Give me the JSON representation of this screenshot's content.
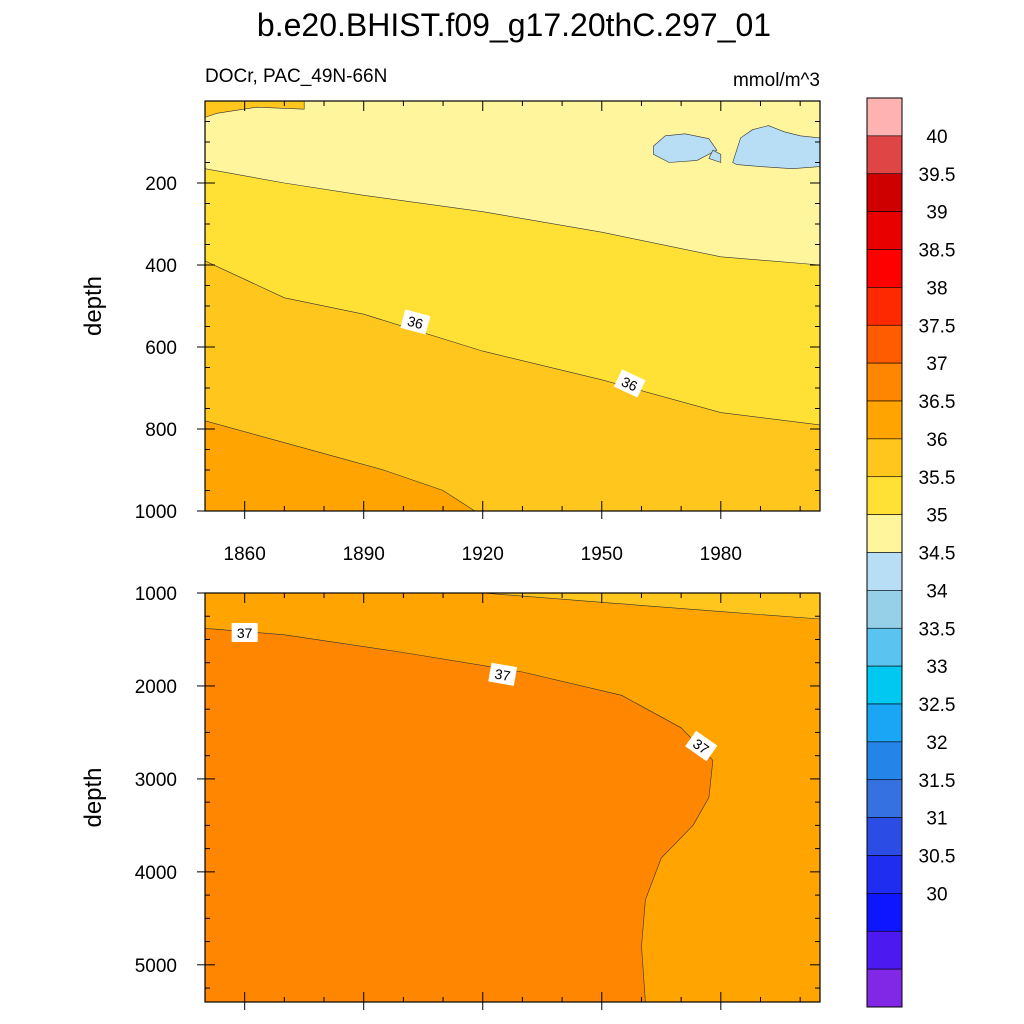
{
  "figure": {
    "title": "b.e20.BHIST.f09_g17.20thC.297_01",
    "variable_label": "DOCr, PAC_49N-66N",
    "units_label": "mmol/m^3"
  },
  "chart_data": [
    {
      "type": "heatmap",
      "panel": "upper",
      "ylabel": "depth",
      "y_reversed": true,
      "x_ticks": [
        "1860",
        "1890",
        "1920",
        "1950",
        "1980"
      ],
      "x_tick_values": [
        1860,
        1890,
        1920,
        1950,
        1980
      ],
      "xlim": [
        1850,
        2005
      ],
      "y_ticks": [
        "200",
        "400",
        "600",
        "800",
        "1000"
      ],
      "y_tick_values": [
        200,
        400,
        600,
        800,
        1000
      ],
      "ylim": [
        0,
        1000
      ],
      "contour_labels": [
        {
          "text": "36",
          "x": 1903,
          "y": 540,
          "angle": 15
        },
        {
          "text": "36",
          "x": 1957,
          "y": 690,
          "angle": 25
        }
      ],
      "regions": [
        {
          "fill": "#ffc61e",
          "points": [
            [
              1850,
              0
            ],
            [
              2005,
              0
            ],
            [
              2005,
              1000
            ],
            [
              1850,
              1000
            ]
          ]
        },
        {
          "fill": "#ffe135",
          "points": [
            [
              1850,
              0
            ],
            [
              2005,
              0
            ],
            [
              2005,
              790
            ],
            [
              1980,
              760
            ],
            [
              1950,
              680
            ],
            [
              1920,
              610
            ],
            [
              1890,
              520
            ],
            [
              1870,
              480
            ],
            [
              1850,
              390
            ]
          ]
        },
        {
          "fill": "#fff59d",
          "points": [
            [
              1850,
              0
            ],
            [
              2005,
              0
            ],
            [
              2005,
              400
            ],
            [
              1980,
              380
            ],
            [
              1950,
              320
            ],
            [
              1920,
              270
            ],
            [
              1890,
              230
            ],
            [
              1870,
              200
            ],
            [
              1850,
              165
            ]
          ]
        },
        {
          "fill": "#ffc61e",
          "points": [
            [
              1850,
              40
            ],
            [
              1853,
              30
            ],
            [
              1863,
              15
            ],
            [
              1875,
              20
            ],
            [
              1875,
              0
            ],
            [
              1850,
              0
            ]
          ]
        },
        {
          "fill": "#ffa400",
          "points": [
            [
              1850,
              780
            ],
            [
              1865,
              820
            ],
            [
              1880,
              860
            ],
            [
              1895,
              900
            ],
            [
              1910,
              950
            ],
            [
              1918,
              1000
            ],
            [
              1850,
              1000
            ]
          ]
        },
        {
          "fill": "#b7def5",
          "points": [
            [
              1963,
              110
            ],
            [
              1966,
              85
            ],
            [
              1971,
              80
            ],
            [
              1977,
              92
            ],
            [
              1979,
              120
            ],
            [
              1974,
              145
            ],
            [
              1967,
              150
            ],
            [
              1963,
              130
            ]
          ]
        },
        {
          "fill": "#b7def5",
          "points": [
            [
              1977,
              140
            ],
            [
              1978,
              120
            ],
            [
              1980,
              130
            ],
            [
              1980,
              150
            ]
          ]
        },
        {
          "fill": "#b7def5",
          "points": [
            [
              1983,
              150
            ],
            [
              1985,
              90
            ],
            [
              1988,
              70
            ],
            [
              1992,
              60
            ],
            [
              1996,
              75
            ],
            [
              2000,
              85
            ],
            [
              2005,
              90
            ],
            [
              2005,
              160
            ],
            [
              1998,
              165
            ],
            [
              1990,
              160
            ],
            [
              1984,
              155
            ]
          ]
        }
      ],
      "levels": [
        35,
        35.5,
        36,
        36.5
      ]
    },
    {
      "type": "heatmap",
      "panel": "lower",
      "ylabel": "depth",
      "y_reversed": true,
      "xlim": [
        1850,
        2005
      ],
      "y_ticks": [
        "1000",
        "2000",
        "3000",
        "4000",
        "5000"
      ],
      "y_tick_values": [
        1000,
        2000,
        3000,
        4000,
        5000
      ],
      "ylim": [
        1000,
        5400
      ],
      "contour_labels": [
        {
          "text": "37",
          "x": 1860,
          "y": 1430,
          "angle": 0
        },
        {
          "text": "37",
          "x": 1925,
          "y": 1880,
          "angle": 10
        },
        {
          "text": "37",
          "x": 1975,
          "y": 2650,
          "angle": 35
        }
      ],
      "regions": [
        {
          "fill": "#ffa400",
          "points": [
            [
              1850,
              1000
            ],
            [
              2005,
              1000
            ],
            [
              2005,
              5400
            ],
            [
              1850,
              5400
            ]
          ]
        },
        {
          "fill": "#ffc61e",
          "points": [
            [
              1920,
              1000
            ],
            [
              2005,
              1000
            ],
            [
              2005,
              1280
            ],
            [
              1980,
              1200
            ],
            [
              1950,
              1100
            ]
          ]
        },
        {
          "fill": "#ff8600",
          "points": [
            [
              1850,
              1380
            ],
            [
              1870,
              1450
            ],
            [
              1900,
              1640
            ],
            [
              1930,
              1850
            ],
            [
              1955,
              2100
            ],
            [
              1970,
              2450
            ],
            [
              1978,
              2800
            ],
            [
              1977,
              3200
            ],
            [
              1973,
              3500
            ],
            [
              1965,
              3850
            ],
            [
              1961,
              4300
            ],
            [
              1960,
              4800
            ],
            [
              1961,
              5400
            ],
            [
              1850,
              5400
            ]
          ]
        }
      ],
      "levels": [
        36.5,
        37
      ]
    }
  ],
  "colorbar": {
    "labels": [
      "40",
      "39.5",
      "39",
      "38.5",
      "38",
      "37.5",
      "37",
      "36.5",
      "36",
      "35.5",
      "35",
      "34.5",
      "34",
      "33.5",
      "33",
      "32.5",
      "32",
      "31.5",
      "31",
      "30.5",
      "30"
    ],
    "colors": [
      "#ffb2b2",
      "#e04545",
      "#cf0000",
      "#e80000",
      "#ff0000",
      "#ff2900",
      "#ff5b00",
      "#ff8600",
      "#ffa400",
      "#ffc61e",
      "#ffe135",
      "#fff59d",
      "#b7def5",
      "#96cfe8",
      "#5ac3f0",
      "#00c8f0",
      "#1aa5f5",
      "#2484e8",
      "#3571e0",
      "#2c4ce6",
      "#1f2df0",
      "#0e16ff",
      "#4c19f0",
      "#8028e6"
    ]
  }
}
